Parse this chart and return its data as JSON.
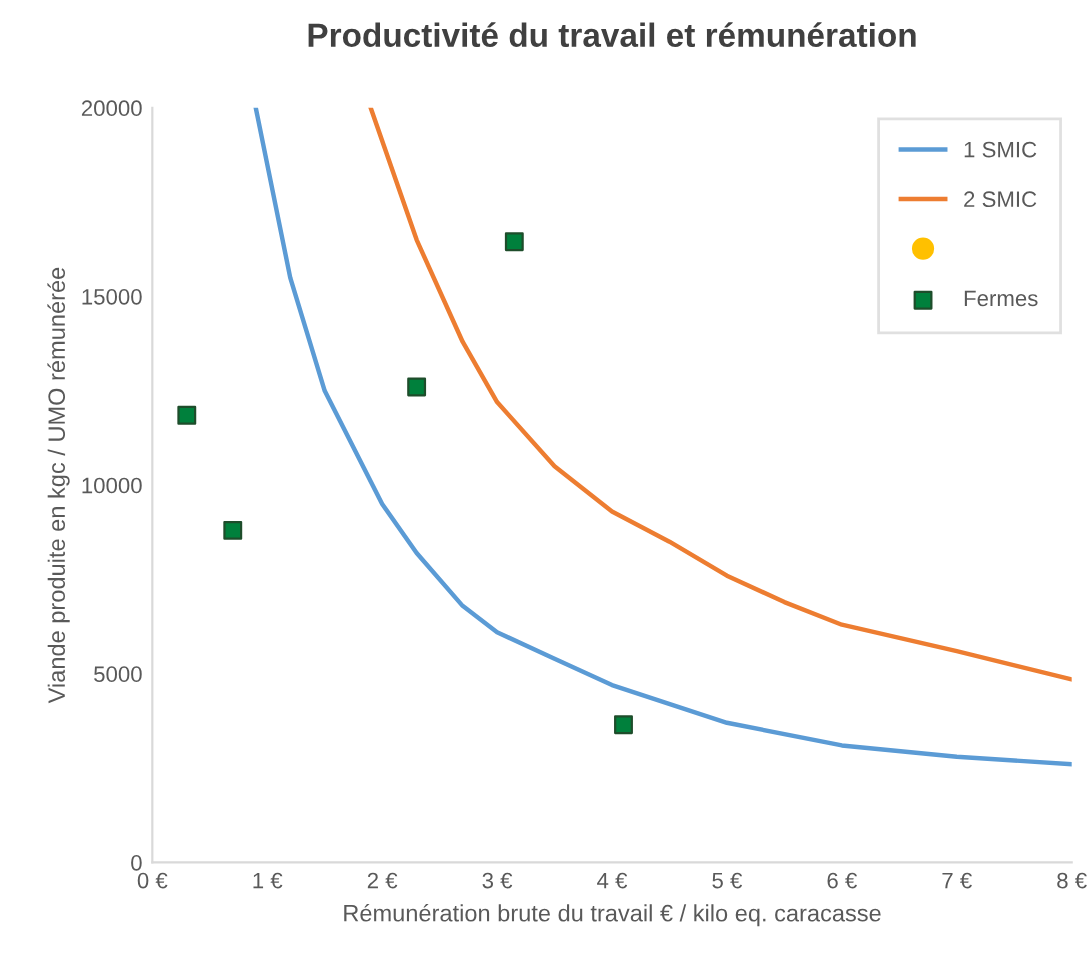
{
  "chart_data": {
    "type": "line",
    "title": "Productivité du travail et rémunération",
    "xlabel": "Rémunération brute du travail € / kilo eq. caracasse",
    "ylabel": "Viande produite en kgc / UMO rémunérée",
    "xlim": [
      0,
      8
    ],
    "xticks": [
      {
        "value": 0,
        "label": "0 €"
      },
      {
        "value": 1,
        "label": "1 €"
      },
      {
        "value": 2,
        "label": "2 €"
      },
      {
        "value": 3,
        "label": "3 €"
      },
      {
        "value": 4,
        "label": "4 €"
      },
      {
        "value": 5,
        "label": "5 €"
      },
      {
        "value": 6,
        "label": "6 €"
      },
      {
        "value": 7,
        "label": "7 €"
      },
      {
        "value": 8,
        "label": "8 €"
      }
    ],
    "ylim": [
      0,
      20000
    ],
    "yticks": [
      0,
      5000,
      10000,
      15000,
      20000
    ],
    "grid": false,
    "legend": "top right",
    "series": [
      {
        "name": "1 SMIC",
        "color": "#5b9bd5",
        "marker": "none",
        "x": [
          0.9,
          1.2,
          1.5,
          2,
          2.3,
          2.7,
          3,
          3.5,
          4,
          5,
          6,
          7,
          8
        ],
        "values": [
          20000,
          15500,
          12500,
          9500,
          8200,
          6800,
          6100,
          5400,
          4700,
          3700,
          3100,
          2800,
          2600
        ]
      },
      {
        "name": "2 SMIC",
        "color": "#ed7d31",
        "marker": "none",
        "x": [
          1.9,
          2.3,
          2.7,
          3,
          3.5,
          4,
          4.5,
          5,
          5.5,
          6,
          7,
          8
        ],
        "values": [
          20000,
          16500,
          13800,
          12200,
          10500,
          9300,
          8500,
          7600,
          6900,
          6300,
          5600,
          4850
        ]
      },
      {
        "type": "scatter",
        "color": "#ffc000",
        "marker": "circle"
      },
      {
        "name": "Fermes",
        "type": "scatter",
        "color": "#00803c",
        "marker": "square",
        "x": [
          0.3,
          0.7,
          2.3,
          3.15,
          4.1
        ],
        "values": [
          11850,
          8800,
          12600,
          16450,
          3650
        ]
      }
    ]
  }
}
